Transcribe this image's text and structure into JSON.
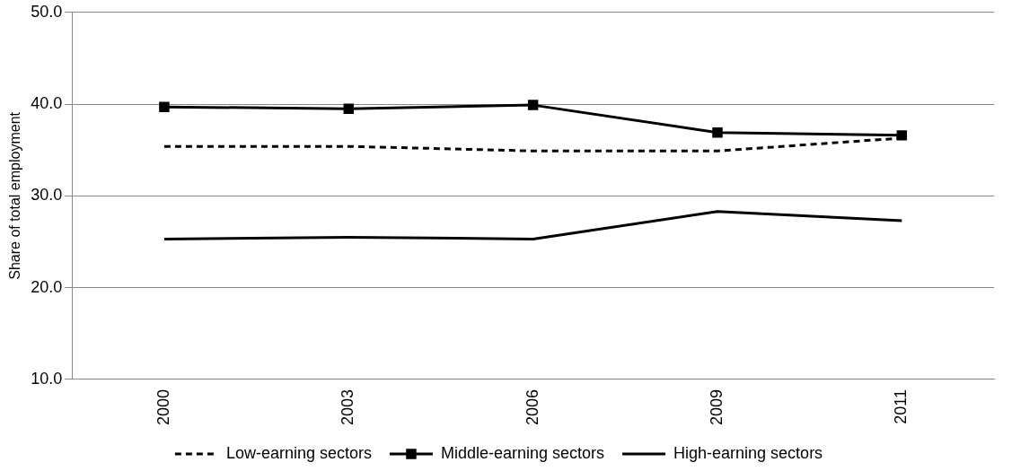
{
  "chart_data": {
    "type": "line",
    "ylabel": "Share of total employment",
    "categories": [
      "2000",
      "2003",
      "2006",
      "2009",
      "2011"
    ],
    "series": [
      {
        "name": "Low-earning sectors",
        "color": "#000000",
        "line_style": "dashed",
        "marker": "none",
        "values": [
          35.4,
          35.4,
          34.9,
          34.9,
          36.3
        ]
      },
      {
        "name": "Middle-earning sectors",
        "color": "#000000",
        "line_style": "solid",
        "marker": "square",
        "values": [
          39.7,
          39.5,
          39.9,
          36.9,
          36.6
        ]
      },
      {
        "name": "High-earning sectors",
        "color": "#000000",
        "line_style": "solid",
        "marker": "none",
        "values": [
          25.3,
          25.5,
          25.3,
          28.3,
          27.3
        ]
      }
    ],
    "ylim": [
      10,
      50
    ],
    "yticks": [
      {
        "value": 10,
        "label": "10.0"
      },
      {
        "value": 20,
        "label": "20.0"
      },
      {
        "value": 30,
        "label": "30.0"
      },
      {
        "value": 40,
        "label": "40.0"
      },
      {
        "value": 50,
        "label": "50.0"
      }
    ],
    "grid": "y",
    "legend": "bottom"
  }
}
